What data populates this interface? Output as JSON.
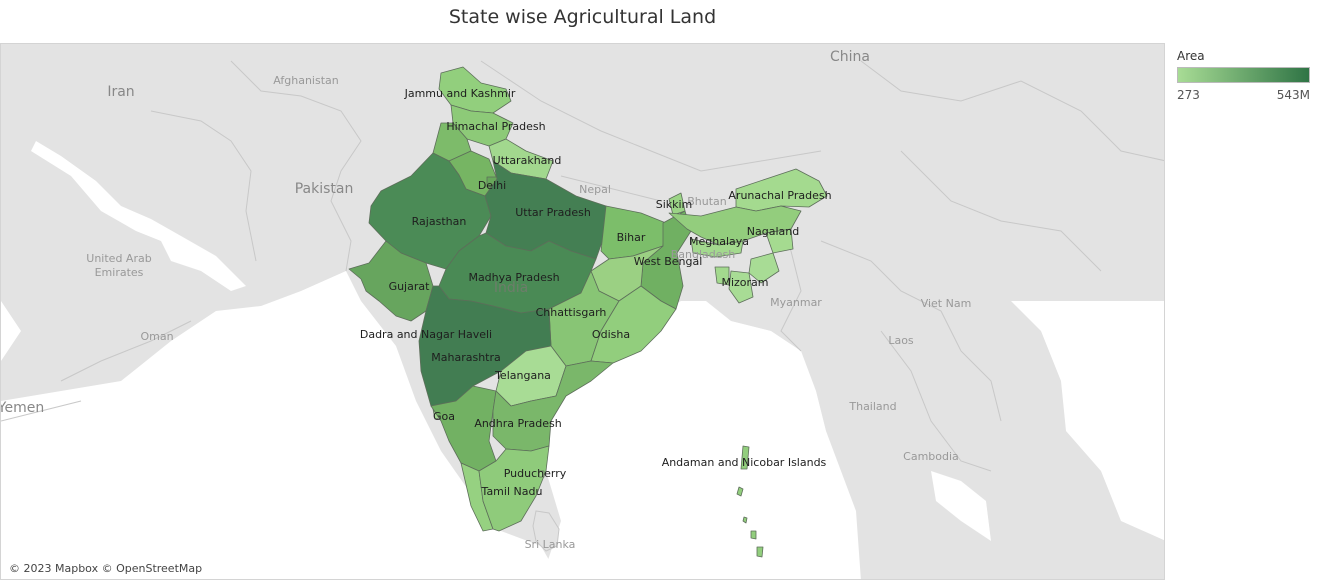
{
  "title": "State wise Agricultural Land",
  "legend": {
    "title": "Area",
    "min_label": "273",
    "max_label": "543M",
    "color_low": "#a8dc95",
    "color_high": "#2f7445"
  },
  "attribution": "© 2023 Mapbox © OpenStreetMap",
  "colors": {
    "land": "#e3e3e3",
    "water": "#ffffff",
    "state_border": "#5d6e5a"
  },
  "map_labels": {
    "china": "China",
    "iran": "Iran",
    "afghanistan": "Afghanistan",
    "pakistan": "Pakistan",
    "nepal": "Nepal",
    "bhutan": "Bhutan",
    "bangladesh": "Bangladesh",
    "myanmar": "Myanmar",
    "india": "India",
    "uae_line1": "United Arab",
    "uae_line2": "Emirates",
    "oman": "Oman",
    "yemen": "Yemen",
    "laos": "Laos",
    "vietnam": "Viet Nam",
    "thailand": "Thailand",
    "cambodia": "Cambodia",
    "sri_lanka": "Sri Lanka"
  },
  "states": {
    "jammu_kashmir": "Jammu and Kashmir",
    "himachal_pradesh": "Himachal Pradesh",
    "uttarakhand": "Uttarakhand",
    "delhi": "Delhi",
    "rajasthan": "Rajasthan",
    "uttar_pradesh": "Uttar Pradesh",
    "bihar": "Bihar",
    "sikkim": "Sikkim",
    "arunachal_pradesh": "Arunachal Pradesh",
    "nagaland": "Nagaland",
    "meghalaya": "Meghalaya",
    "west_bengal": "West Bengal",
    "mizoram": "Mizoram",
    "gujarat": "Gujarat",
    "madhya_pradesh": "Madhya Pradesh",
    "chhattisgarh": "Chhattisgarh",
    "odisha": "Odisha",
    "dadra_nagar_haveli": "Dadra and Nagar Haveli",
    "maharashtra": "Maharashtra",
    "telangana": "Telangana",
    "goa": "Goa",
    "andhra_pradesh": "Andhra Pradesh",
    "andaman_nicobar": "Andaman and Nicobar Islands",
    "puducherry": "Puducherry",
    "tamil_nadu": "Tamil Nadu"
  }
}
